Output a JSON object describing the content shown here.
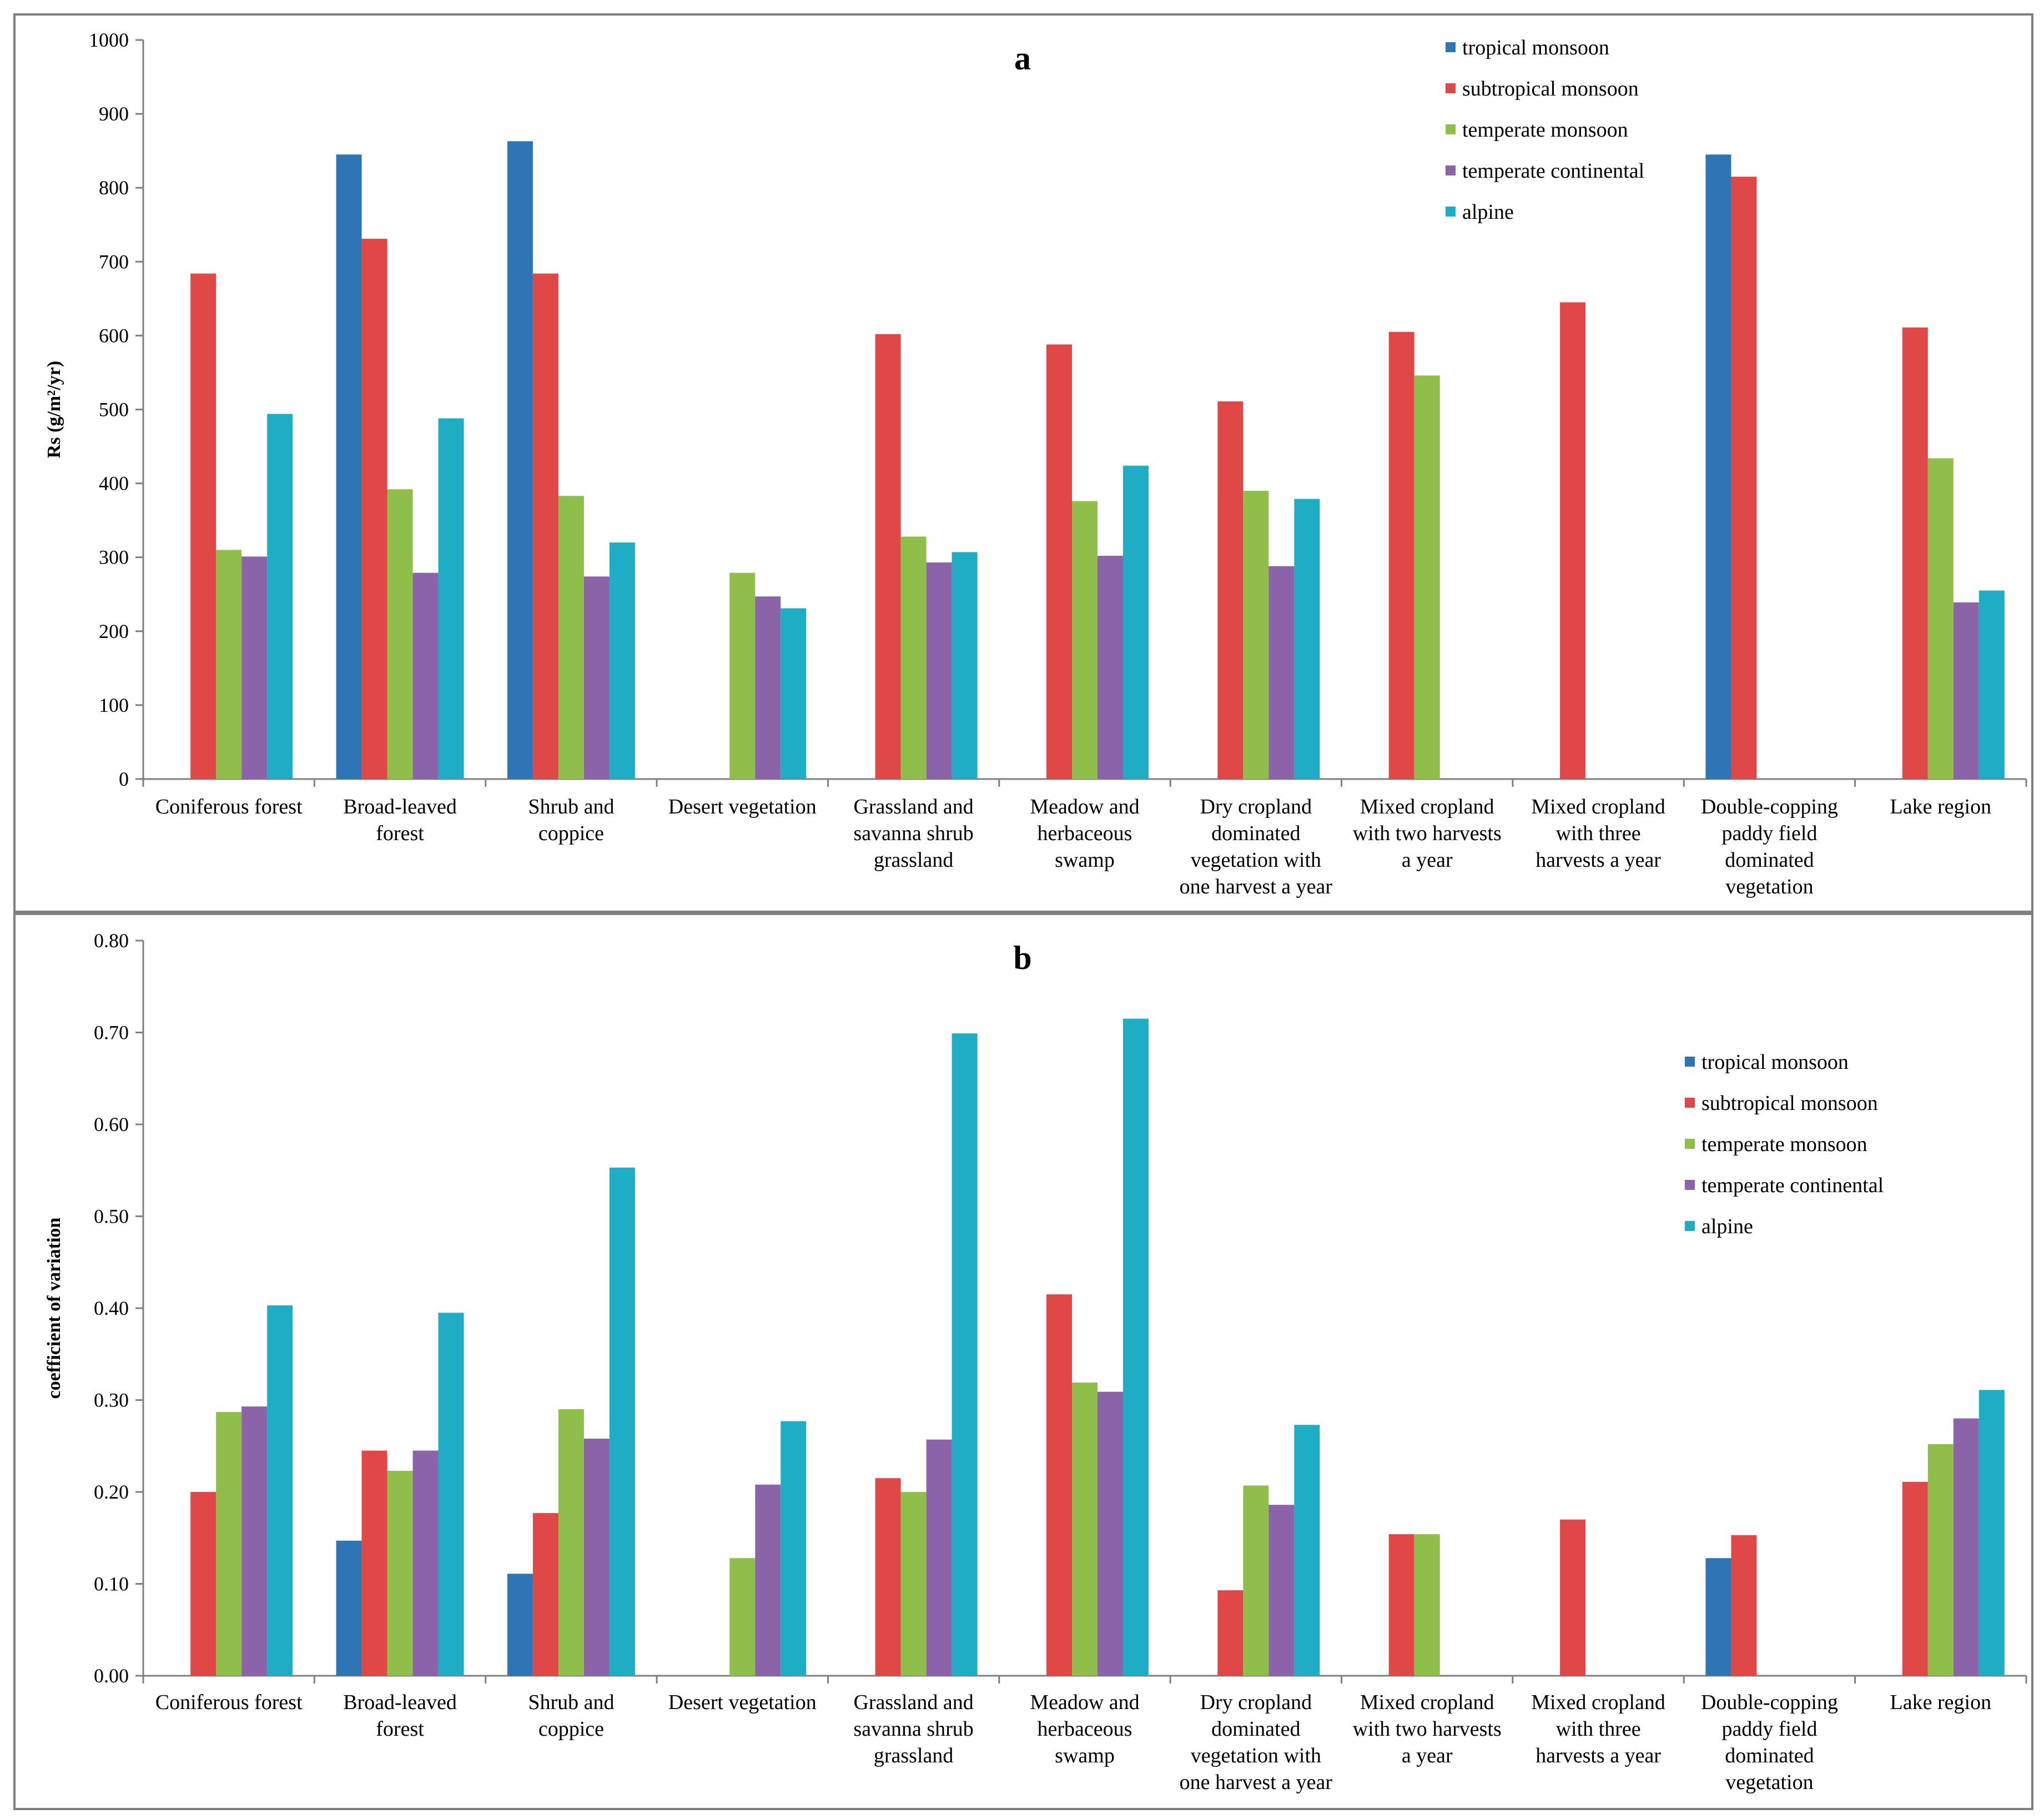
{
  "chart_data": [
    {
      "type": "bar",
      "title": "a",
      "xlabel": "",
      "ylabel": "Rs (g/m²/yr)",
      "ylim": [
        0,
        1000
      ],
      "yticks": [
        "0",
        "100",
        "200",
        "300",
        "400",
        "500",
        "600",
        "700",
        "800",
        "900",
        "1000"
      ],
      "grid": false,
      "legend_position": "top-right",
      "categories": [
        [
          "Coniferous forest"
        ],
        [
          "Broad-leaved",
          "forest"
        ],
        [
          "Shrub and",
          "coppice"
        ],
        [
          "Desert vegetation"
        ],
        [
          "Grassland and",
          "savanna shrub",
          "grassland"
        ],
        [
          "Meadow and",
          "herbaceous",
          "swamp"
        ],
        [
          "Dry cropland",
          "dominated",
          "vegetation with",
          "one harvest a year"
        ],
        [
          "Mixed cropland",
          "with two harvests",
          "a year"
        ],
        [
          "Mixed cropland",
          "with three",
          "harvests a year"
        ],
        [
          "Double-copping",
          "paddy field",
          "dominated",
          "vegetation"
        ],
        [
          "Lake region"
        ]
      ],
      "series": [
        {
          "name": "tropical monsoon",
          "color": "#2E75B6",
          "values": [
            null,
            845,
            863,
            null,
            null,
            null,
            null,
            null,
            null,
            845,
            null
          ]
        },
        {
          "name": "subtropical monsoon",
          "color": "#E04848",
          "values": [
            684,
            731,
            684,
            null,
            602,
            588,
            511,
            605,
            645,
            815,
            611
          ]
        },
        {
          "name": "temperate monsoon",
          "color": "#8FBF4A",
          "values": [
            310,
            392,
            383,
            279,
            328,
            376,
            390,
            546,
            null,
            null,
            434
          ]
        },
        {
          "name": "temperate continental",
          "color": "#8A63A8",
          "values": [
            301,
            279,
            274,
            247,
            293,
            302,
            288,
            null,
            null,
            null,
            239
          ]
        },
        {
          "name": "alpine",
          "color": "#1FADC6",
          "values": [
            494,
            488,
            320,
            231,
            307,
            424,
            379,
            null,
            null,
            null,
            255
          ]
        }
      ]
    },
    {
      "type": "bar",
      "title": "b",
      "xlabel": "",
      "ylabel": "coefficient of variation",
      "ylim": [
        0,
        0.8
      ],
      "yticks": [
        "0.00",
        "0.10",
        "0.20",
        "0.30",
        "0.40",
        "0.50",
        "0.60",
        "0.70",
        "0.80"
      ],
      "grid": false,
      "legend_position": "top-right",
      "categories": [
        [
          "Coniferous forest"
        ],
        [
          "Broad-leaved",
          "forest"
        ],
        [
          "Shrub and",
          "coppice"
        ],
        [
          "Desert vegetation"
        ],
        [
          "Grassland and",
          "savanna shrub",
          "grassland"
        ],
        [
          "Meadow and",
          "herbaceous",
          "swamp"
        ],
        [
          "Dry cropland",
          "dominated",
          "vegetation with",
          "one harvest a year"
        ],
        [
          "Mixed cropland",
          "with two harvests",
          "a year"
        ],
        [
          "Mixed cropland",
          "with three",
          "harvests a year"
        ],
        [
          "Double-copping",
          "paddy field",
          "dominated",
          "vegetation"
        ],
        [
          "Lake region"
        ]
      ],
      "series": [
        {
          "name": "tropical monsoon",
          "color": "#2E75B6",
          "values": [
            null,
            0.147,
            0.111,
            null,
            null,
            null,
            null,
            null,
            null,
            0.128,
            null
          ]
        },
        {
          "name": "subtropical monsoon",
          "color": "#E04848",
          "values": [
            0.2,
            0.245,
            0.177,
            null,
            0.215,
            0.415,
            0.093,
            0.154,
            0.17,
            0.153,
            0.211
          ]
        },
        {
          "name": "temperate monsoon",
          "color": "#8FBF4A",
          "values": [
            0.287,
            0.223,
            0.29,
            0.128,
            0.2,
            0.319,
            0.207,
            0.154,
            null,
            null,
            0.252
          ]
        },
        {
          "name": "temperate continental",
          "color": "#8A63A8",
          "values": [
            0.293,
            0.245,
            0.258,
            0.208,
            0.257,
            0.309,
            0.186,
            null,
            null,
            null,
            0.28
          ]
        },
        {
          "name": "alpine",
          "color": "#1FADC6",
          "values": [
            0.403,
            0.395,
            0.553,
            0.277,
            0.699,
            0.715,
            0.273,
            null,
            null,
            null,
            0.311
          ]
        }
      ]
    }
  ]
}
